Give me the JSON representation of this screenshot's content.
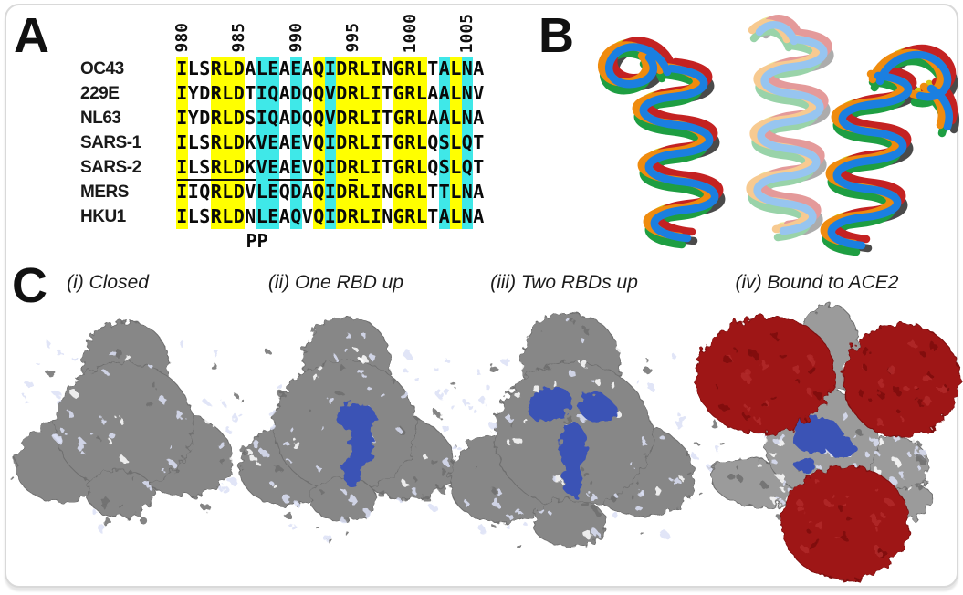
{
  "figure": {
    "background": "#ffffff",
    "border_color": "#d9d9d9"
  },
  "panels": [
    {
      "id": "A",
      "label": "A"
    },
    {
      "id": "B",
      "label": "B"
    },
    {
      "id": "C",
      "label": "C"
    }
  ],
  "alignment": {
    "ruler": {
      "labels": [
        "980",
        "985",
        "990",
        "995",
        "1000",
        "1005"
      ],
      "column_indices": [
        0,
        5,
        10,
        15,
        20,
        25
      ]
    },
    "rows": [
      {
        "name": "OC43",
        "sequence": "ILSRLDALEAEAQIDRLINGRLTALNA"
      },
      {
        "name": "229E",
        "sequence": "IYDRLDTIQADQQVDRLITGRLAALNV"
      },
      {
        "name": "NL63",
        "sequence": "IYDRLDSIQADQQVDRLITGRLAALNA"
      },
      {
        "name": "SARS-1",
        "sequence": "ILSRLDKVEAEVQIDRLITGRLQSLQT"
      },
      {
        "name": "SARS-2",
        "sequence": "ILSRLDKVEAEVQIDRLITGRLQSLQT",
        "underline_ranges": [
          [
            0,
            6
          ],
          [
            8,
            12
          ],
          [
            15,
            15
          ]
        ]
      },
      {
        "name": "MERS",
        "sequence": "IIQRLDVLEQDAQIDRLINGRLTTLNA"
      },
      {
        "name": "HKU1",
        "sequence": "ILSRLDNLEAQVQIDRLINGRLTALNA"
      }
    ],
    "column_highlights": "YWWYYYWCCWCWYCYYYYWYYYWCYCW",
    "highlight_colors": {
      "Y": "#ffff00",
      "C": "#3fe8e8",
      "W": "transparent"
    },
    "annotation": {
      "text": "PP",
      "column_indices": [
        6,
        7
      ]
    }
  },
  "panel_b": {
    "tube_colors": [
      "#4a4a4a",
      "#1e9e42",
      "#d6c613",
      "#c42222",
      "#ef8b0e",
      "#1b7fe0"
    ]
  },
  "panel_c": {
    "captions": [
      "(i) Closed",
      "(ii) One RBD up",
      "(iii) Two RBDs up",
      "(iv) Bound to ACE2"
    ],
    "colors": {
      "surface_gray": "#878787",
      "surface_gray_light": "#9b9b9b",
      "rbd_blue": "#3b53b5",
      "ace2_red": "#9e1717",
      "glycan_lavender": "#dce1f6",
      "speckle_white": "#ffffff",
      "shadow_gray": "#6e6e6e",
      "ace2_dark": "#7d0e0e"
    }
  }
}
